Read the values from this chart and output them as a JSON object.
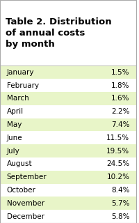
{
  "title": "Table 2. Distribution\nof annual costs\nby month",
  "months": [
    "January",
    "February",
    "March",
    "April",
    "May",
    "June",
    "July",
    "August",
    "September",
    "October",
    "November",
    "December"
  ],
  "values": [
    "1.5%",
    "1.8%",
    "1.6%",
    "2.2%",
    "7.4%",
    "11.5%",
    "19.5%",
    "24.5%",
    "10.2%",
    "8.4%",
    "5.7%",
    "5.8%"
  ],
  "row_colors_shaded": [
    true,
    false,
    true,
    false,
    true,
    false,
    true,
    false,
    true,
    false,
    true,
    false
  ],
  "shaded_color": "#e8f5c8",
  "unshaded_color": "#ffffff",
  "title_bg": "#ffffff",
  "title_color": "#000000",
  "text_color": "#000000",
  "border_color": "#aaaaaa",
  "title_fontsize": 9.5,
  "row_fontsize": 7.5
}
